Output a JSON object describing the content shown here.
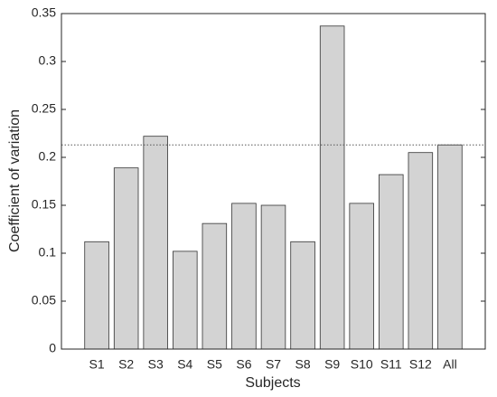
{
  "chart_data": {
    "type": "bar",
    "x_label": "Subjects",
    "y_label": "Coefficient of variation",
    "categories": [
      "S1",
      "S2",
      "S3",
      "S4",
      "S5",
      "S6",
      "S7",
      "S8",
      "S9",
      "S10",
      "S11",
      "S12",
      "All"
    ],
    "values": [
      0.112,
      0.189,
      0.222,
      0.102,
      0.131,
      0.152,
      0.15,
      0.112,
      0.337,
      0.152,
      0.182,
      0.205,
      0.213
    ],
    "color": "#d3d3d3",
    "reference_line": 0.213,
    "ylim": [
      0,
      0.35
    ],
    "yticks": [
      0,
      0.05,
      0.1,
      0.15,
      0.2,
      0.25,
      0.3,
      0.35
    ],
    "grid": false
  }
}
